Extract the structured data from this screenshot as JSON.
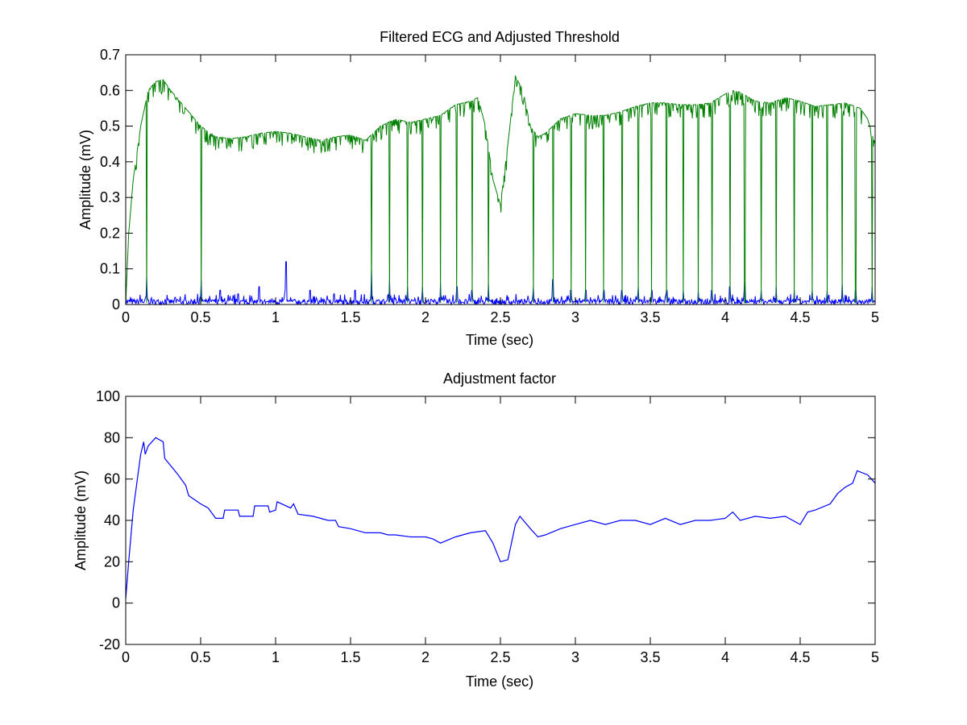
{
  "chart_data": [
    {
      "type": "line",
      "title": "Filtered ECG and Adjusted Threshold",
      "xlabel": "Time (sec)",
      "ylabel": "Amplitude (mV)",
      "xlim": [
        0,
        5
      ],
      "ylim": [
        0,
        0.7
      ],
      "xticks": [
        "0",
        "0.5",
        "1",
        "1.5",
        "2",
        "2.5",
        "3",
        "3.5",
        "4",
        "4.5",
        "5"
      ],
      "xtick_values": [
        0,
        0.5,
        1,
        1.5,
        2,
        2.5,
        3,
        3.5,
        4,
        4.5,
        5
      ],
      "yticks": [
        "0",
        "0.1",
        "0.2",
        "0.3",
        "0.4",
        "0.5",
        "0.6",
        "0.7"
      ],
      "ytick_values": [
        0,
        0.1,
        0.2,
        0.3,
        0.4,
        0.5,
        0.6,
        0.7
      ],
      "grid": false,
      "series": [
        {
          "name": "Adjusted threshold",
          "color": "#008000",
          "envelope_x": [
            0,
            0.02,
            0.05,
            0.1,
            0.15,
            0.2,
            0.25,
            0.3,
            0.4,
            0.5,
            0.6,
            0.7,
            0.8,
            0.9,
            1.0,
            1.1,
            1.2,
            1.3,
            1.4,
            1.5,
            1.6,
            1.7,
            1.8,
            1.9,
            2.0,
            2.1,
            2.2,
            2.3,
            2.35,
            2.4,
            2.45,
            2.5,
            2.55,
            2.6,
            2.65,
            2.7,
            2.75,
            2.8,
            2.9,
            3.0,
            3.1,
            3.2,
            3.3,
            3.4,
            3.5,
            3.6,
            3.7,
            3.8,
            3.9,
            4.0,
            4.05,
            4.1,
            4.2,
            4.3,
            4.4,
            4.5,
            4.6,
            4.7,
            4.8,
            4.9,
            4.95,
            5.0
          ],
          "envelope_y": [
            0,
            0.2,
            0.35,
            0.5,
            0.6,
            0.625,
            0.63,
            0.6,
            0.55,
            0.5,
            0.47,
            0.465,
            0.47,
            0.48,
            0.485,
            0.48,
            0.47,
            0.46,
            0.47,
            0.475,
            0.46,
            0.5,
            0.52,
            0.51,
            0.52,
            0.53,
            0.56,
            0.57,
            0.58,
            0.5,
            0.35,
            0.28,
            0.45,
            0.64,
            0.6,
            0.5,
            0.47,
            0.48,
            0.52,
            0.535,
            0.53,
            0.53,
            0.54,
            0.555,
            0.565,
            0.565,
            0.56,
            0.56,
            0.565,
            0.59,
            0.6,
            0.595,
            0.57,
            0.565,
            0.58,
            0.57,
            0.555,
            0.56,
            0.565,
            0.55,
            0.52,
            0.45
          ]
        },
        {
          "name": "Filtered ECG",
          "color": "#0000ff",
          "beat_times": [
            0.14,
            0.33,
            0.505,
            0.63,
            0.75,
            0.89,
            1.07,
            1.23,
            1.39,
            1.53,
            1.64,
            1.76,
            1.88,
            1.98,
            2.1,
            2.21,
            2.31,
            2.42,
            2.72,
            2.85,
            2.97,
            3.07,
            3.19,
            3.31,
            3.42,
            3.51,
            3.61,
            3.72,
            3.82,
            3.91,
            4.03,
            4.13,
            4.24,
            4.34,
            4.46,
            4.58,
            4.68,
            4.78,
            4.87,
            4.98
          ],
          "beat_peaks": [
            0.08,
            0.02,
            0.07,
            0.04,
            0.03,
            0.05,
            0.12,
            0.04,
            0.03,
            0.04,
            0.1,
            0.07,
            0.05,
            0.05,
            0.06,
            0.05,
            0.04,
            0.06,
            0.05,
            0.07,
            0.04,
            0.04,
            0.04,
            0.04,
            0.05,
            0.04,
            0.04,
            0.04,
            0.04,
            0.04,
            0.05,
            0.06,
            0.04,
            0.05,
            0.04,
            0.04,
            0.04,
            0.06,
            0.04,
            0.05
          ],
          "noise_level": 0.015
        }
      ]
    },
    {
      "type": "line",
      "title": "Adjustment factor",
      "xlabel": "Time (sec)",
      "ylabel": "Amplitude (mV)",
      "xlim": [
        0,
        5
      ],
      "ylim": [
        -20,
        100
      ],
      "xticks": [
        "0",
        "0.5",
        "1",
        "1.5",
        "2",
        "2.5",
        "3",
        "3.5",
        "4",
        "4.5",
        "5"
      ],
      "xtick_values": [
        0,
        0.5,
        1,
        1.5,
        2,
        2.5,
        3,
        3.5,
        4,
        4.5,
        5
      ],
      "yticks": [
        "-20",
        "0",
        "20",
        "40",
        "60",
        "80",
        "100"
      ],
      "ytick_values": [
        -20,
        0,
        20,
        40,
        60,
        80,
        100
      ],
      "grid": false,
      "series": [
        {
          "name": "Adjustment factor",
          "color": "#0000ff",
          "x": [
            0,
            0.02,
            0.05,
            0.1,
            0.12,
            0.13,
            0.15,
            0.2,
            0.25,
            0.26,
            0.35,
            0.4,
            0.42,
            0.5,
            0.55,
            0.6,
            0.65,
            0.66,
            0.75,
            0.76,
            0.85,
            0.86,
            0.95,
            0.96,
            1.0,
            1.01,
            1.1,
            1.12,
            1.15,
            1.25,
            1.35,
            1.4,
            1.42,
            1.5,
            1.6,
            1.7,
            1.75,
            1.8,
            1.9,
            2.0,
            2.05,
            2.1,
            2.2,
            2.3,
            2.4,
            2.45,
            2.5,
            2.55,
            2.6,
            2.63,
            2.7,
            2.75,
            2.8,
            2.9,
            3.0,
            3.1,
            3.2,
            3.3,
            3.4,
            3.5,
            3.6,
            3.7,
            3.8,
            3.9,
            4.0,
            4.05,
            4.1,
            4.2,
            4.3,
            4.4,
            4.5,
            4.55,
            4.6,
            4.7,
            4.75,
            4.8,
            4.85,
            4.88,
            4.95,
            5.0
          ],
          "y": [
            2,
            20,
            45,
            72,
            78,
            72,
            76,
            80,
            78,
            70,
            62,
            57,
            52,
            48,
            46,
            41,
            41,
            45,
            45,
            42,
            42,
            47,
            47,
            44,
            45,
            49,
            46,
            48,
            43,
            42,
            40,
            40,
            37,
            36,
            34,
            34,
            33,
            33,
            32,
            32,
            31,
            29,
            32,
            34,
            35,
            29,
            20,
            21,
            38,
            42,
            36,
            32,
            33,
            36,
            38,
            40,
            38,
            40,
            40,
            38,
            41,
            38,
            40,
            40,
            41,
            44,
            40,
            42,
            41,
            42,
            38,
            44,
            45,
            48,
            53,
            56,
            58,
            64,
            62,
            58
          ]
        }
      ]
    }
  ]
}
